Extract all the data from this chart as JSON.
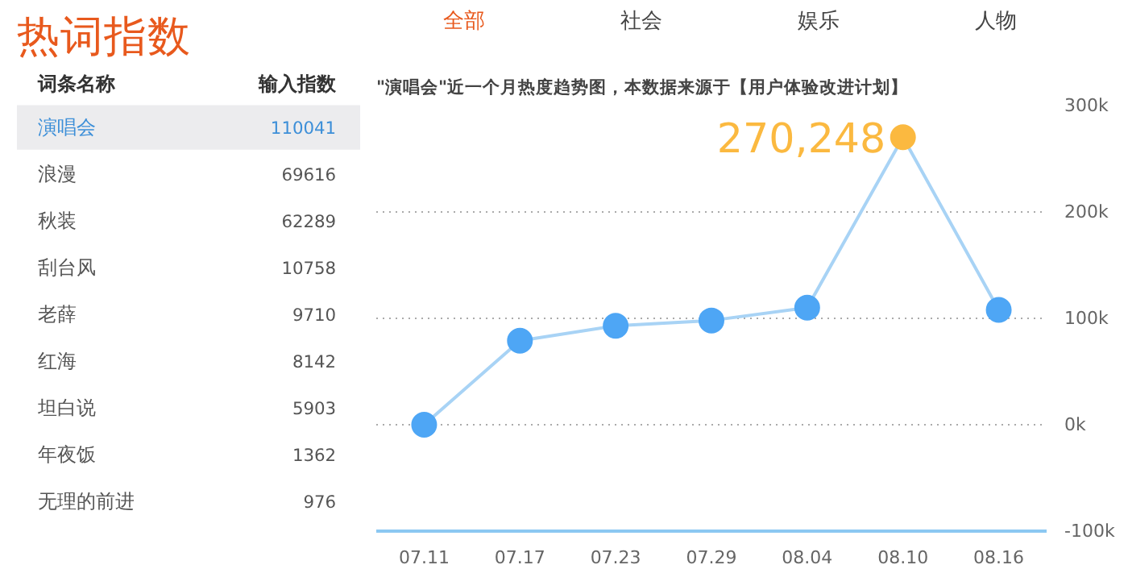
{
  "chart_data": [
    {
      "type": "other",
      "title": "热词指数",
      "annotations": [
        "词条名称",
        "输入指数"
      ],
      "categories": [
        "演唱会",
        "浪漫",
        "秋装",
        "刮台风",
        "老薛",
        "红海",
        "坦白说",
        "年夜饭",
        "无理的前进"
      ],
      "values": [
        110041,
        69616,
        62289,
        10758,
        9710,
        8142,
        5903,
        1362,
        976
      ],
      "data_labels": true
    },
    {
      "type": "line",
      "title": "\"演唱会\"近一个月热度趋势图，本数据来源于【用户体验改进计划】",
      "annotations": [
        "全部",
        "社会",
        "娱乐",
        "人物"
      ],
      "categories": [
        "07.11",
        "07.17",
        "07.23",
        "07.29",
        "08.04",
        "08.10",
        "08.16"
      ],
      "series": [
        {
          "color": "#a8d3f5",
          "values": [
            0,
            79000,
            93000,
            98000,
            110000,
            270248,
            108000
          ],
          "colors": [
            "#4ea6f5",
            "#4ea6f5",
            "#4ea6f5",
            "#4ea6f5",
            "#4ea6f5",
            "#fbb940",
            "#4ea6f5"
          ],
          "value_labels": [
            null,
            null,
            null,
            null,
            null,
            "270,248",
            null
          ]
        }
      ],
      "ylim": [
        -100000,
        300000
      ],
      "yticks": [
        {
          "value": -100000,
          "label": "-100k"
        },
        {
          "value": 0,
          "label": "0k"
        },
        {
          "value": 100000,
          "label": "100k"
        },
        {
          "value": 200000,
          "label": "200k"
        },
        {
          "value": 300000,
          "label": "300k"
        }
      ],
      "grid": "y",
      "marker": "circle",
      "line_style": "solid"
    }
  ]
}
